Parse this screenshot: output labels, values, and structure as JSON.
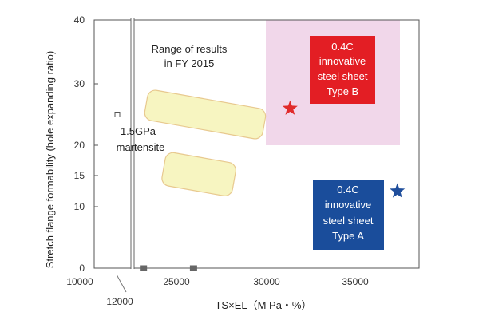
{
  "chart_data": {
    "type": "scatter",
    "title": "",
    "xlabel": "TS×EL（M Pa・%）",
    "ylabel": "Stretch flange formability (hole expanding ratio)",
    "xlim": [
      10000,
      37500
    ],
    "ylim": [
      0,
      40
    ],
    "x_ticks": [
      "10000",
      "12000",
      "25000",
      "30000",
      "35000"
    ],
    "y_ticks": [
      "0",
      "10",
      "15",
      "20",
      "30",
      "40"
    ],
    "axis_break": "12000",
    "points": [
      {
        "name": "1.5GPa martensite",
        "x": 12000,
        "y": 25,
        "marker": "open-square",
        "color": "#555555"
      },
      {
        "name": "low-1",
        "x": 23200,
        "y": 0,
        "marker": "filled-square",
        "color": "#666666"
      },
      {
        "name": "low-2",
        "x": 26000,
        "y": 0,
        "marker": "filled-square",
        "color": "#666666"
      },
      {
        "name": "0.4C innovative steel sheet Type B",
        "x": 31400,
        "y": 26,
        "marker": "star",
        "color": "#e12b2b"
      },
      {
        "name": "0.4C innovative steel sheet Type A",
        "x": 37400,
        "y": 12.5,
        "marker": "star",
        "color": "#1f4e9c"
      }
    ],
    "regions": [
      {
        "name": "Type B target zone",
        "x": [
          30000,
          37500
        ],
        "y": [
          20,
          40
        ],
        "color": "#f1d7ea"
      }
    ],
    "result_range": {
      "label": [
        "Range of results",
        "in FY 2015"
      ],
      "color": "#f7f5c1",
      "border": "#e8c98f",
      "shapes": [
        {
          "x_left": 23300,
          "x_right": 30000,
          "y_upper": 27.5,
          "y_lower": 22.5
        },
        {
          "x_left": 24300,
          "x_right": 28300,
          "y_upper": 18,
          "y_lower": 12.5
        }
      ]
    },
    "annotations": {
      "martensite": [
        "1.5GPa",
        "martensite"
      ],
      "type_b": {
        "lines": [
          "0.4C",
          "innovative",
          "steel sheet",
          "Type B"
        ],
        "color": "#e31e24"
      },
      "type_a": {
        "lines": [
          "0.4C",
          "innovative",
          "steel sheet",
          "Type A"
        ],
        "color": "#1a4d9b"
      }
    }
  }
}
